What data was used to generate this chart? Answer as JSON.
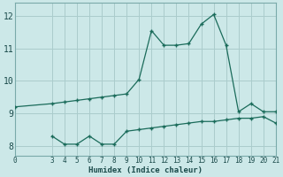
{
  "xlabel": "Humidex (Indice chaleur)",
  "background_color": "#cce8e8",
  "grid_color": "#aacccc",
  "line_color": "#1a6b5a",
  "xlim": [
    0,
    21
  ],
  "ylim": [
    7.7,
    12.4
  ],
  "yticks": [
    8,
    9,
    10,
    11,
    12
  ],
  "xticks": [
    0,
    3,
    4,
    5,
    6,
    7,
    8,
    9,
    10,
    11,
    12,
    13,
    14,
    15,
    16,
    17,
    18,
    19,
    20,
    21
  ],
  "line1_x": [
    0,
    3,
    4,
    5,
    6,
    7,
    8,
    9,
    10,
    11,
    12,
    13,
    14,
    15,
    16,
    17,
    18,
    19,
    20,
    21
  ],
  "line1_y": [
    9.2,
    9.3,
    9.35,
    9.4,
    9.45,
    9.5,
    9.55,
    9.6,
    10.05,
    11.55,
    11.1,
    11.1,
    11.15,
    11.75,
    12.05,
    11.1,
    9.05,
    9.3,
    9.05,
    9.05
  ],
  "line2_x": [
    3,
    4,
    5,
    6,
    7,
    8,
    9,
    10,
    11,
    12,
    13,
    14,
    15,
    16,
    17,
    18,
    19,
    20,
    21
  ],
  "line2_y": [
    8.3,
    8.05,
    8.05,
    8.3,
    8.05,
    8.05,
    8.45,
    8.5,
    8.55,
    8.6,
    8.65,
    8.7,
    8.75,
    8.75,
    8.8,
    8.85,
    8.85,
    8.9,
    8.7
  ]
}
